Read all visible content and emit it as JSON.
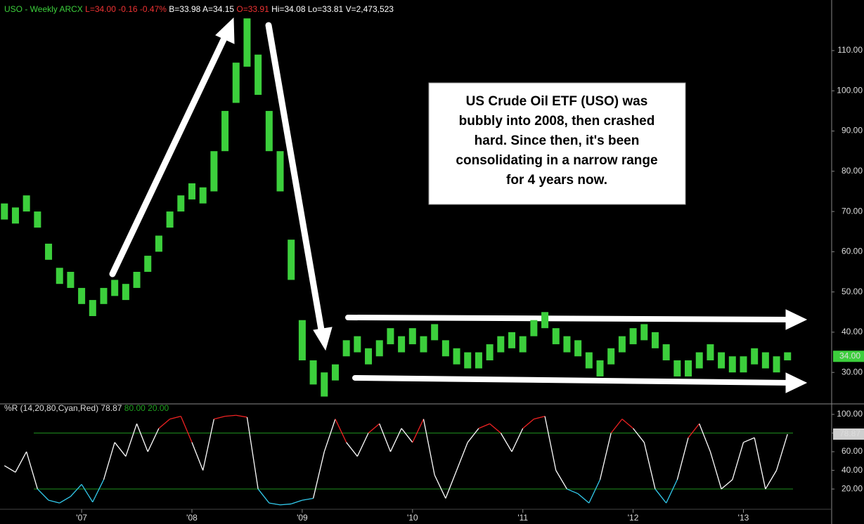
{
  "chart_data": [
    {
      "type": "range-bar",
      "header": {
        "symbol": "USO - Weekly",
        "exchange": "ARCX",
        "last": "L=34.00",
        "change": "-0.16",
        "change_pct": "-0.47%",
        "bid": "B=33.98",
        "ask": "A=34.15",
        "open": "O=33.91",
        "high": "Hi=34.08",
        "low": "Lo=33.81",
        "volume": "V=2,473,523"
      },
      "annotation": [
        "US Crude Oil ETF (USO) was",
        "bubbly into 2008, then crashed",
        "hard.  Since then, it's been",
        "consolidating in a narrow range",
        "for 4 years now."
      ],
      "x": [
        2006.3,
        2006.4,
        2006.5,
        2006.6,
        2006.7,
        2006.8,
        2006.9,
        2007.0,
        2007.1,
        2007.2,
        2007.3,
        2007.4,
        2007.5,
        2007.6,
        2007.7,
        2007.8,
        2007.9,
        2008.0,
        2008.1,
        2008.2,
        2008.3,
        2008.4,
        2008.5,
        2008.6,
        2008.7,
        2008.8,
        2008.9,
        2009.0,
        2009.1,
        2009.2,
        2009.3,
        2009.4,
        2009.5,
        2009.6,
        2009.7,
        2009.8,
        2009.9,
        2010.0,
        2010.1,
        2010.2,
        2010.3,
        2010.4,
        2010.5,
        2010.6,
        2010.7,
        2010.8,
        2010.9,
        2011.0,
        2011.1,
        2011.2,
        2011.3,
        2011.4,
        2011.5,
        2011.6,
        2011.7,
        2011.8,
        2011.9,
        2012.0,
        2012.1,
        2012.2,
        2012.3,
        2012.4,
        2012.5,
        2012.6,
        2012.7,
        2012.8,
        2012.9,
        2013.0,
        2013.1,
        2013.2,
        2013.3,
        2013.4
      ],
      "high": [
        72,
        71,
        74,
        70,
        62,
        56,
        55,
        51,
        48,
        51,
        53,
        52,
        55,
        59,
        64,
        70,
        74,
        77,
        76,
        85,
        95,
        107,
        118,
        109,
        95,
        85,
        63,
        43,
        33,
        30,
        32,
        38,
        39,
        36,
        38,
        41,
        39,
        41,
        39,
        42,
        38,
        36,
        35,
        35,
        37,
        39,
        40,
        39,
        43,
        45,
        41,
        39,
        38,
        35,
        33,
        36,
        39,
        41,
        42,
        40,
        37,
        33,
        33,
        35,
        37,
        35,
        34,
        34,
        36,
        35,
        34,
        35
      ],
      "low": [
        68,
        67,
        70,
        66,
        58,
        52,
        51,
        47,
        44,
        47,
        49,
        48,
        51,
        55,
        60,
        66,
        70,
        73,
        72,
        75,
        85,
        97,
        106,
        99,
        85,
        75,
        53,
        33,
        27,
        24,
        28,
        34,
        35,
        32,
        34,
        37,
        35,
        37,
        35,
        38,
        34,
        32,
        31,
        31,
        33,
        35,
        36,
        35,
        39,
        41,
        37,
        35,
        34,
        31,
        29,
        32,
        35,
        37,
        38,
        36,
        33,
        29,
        29,
        31,
        33,
        31,
        30,
        30,
        32,
        31,
        30,
        33
      ],
      "color": "#3ccf3c",
      "xlim": [
        2006.26,
        2013.8
      ],
      "xticks": [
        {
          "value": 2007,
          "label": "'07"
        },
        {
          "value": 2008,
          "label": "'08"
        },
        {
          "value": 2009,
          "label": "'09"
        },
        {
          "value": 2010,
          "label": "'10"
        },
        {
          "value": 2011,
          "label": "'11"
        },
        {
          "value": 2012,
          "label": "'12"
        },
        {
          "value": 2013,
          "label": "'13"
        }
      ],
      "ylim": [
        22.7,
        121.7
      ],
      "yticks": [
        {
          "value": 30,
          "label": "30.00"
        },
        {
          "value": 40,
          "label": "40.00"
        },
        {
          "value": 50,
          "label": "50.00"
        },
        {
          "value": 60,
          "label": "60.00"
        },
        {
          "value": 70,
          "label": "70.00"
        },
        {
          "value": 80,
          "label": "80.00"
        },
        {
          "value": 90,
          "label": "90.00"
        },
        {
          "value": 100,
          "label": "100.00"
        },
        {
          "value": 110,
          "label": "110.00"
        }
      ],
      "last_value": {
        "value": 34,
        "label": "34.00"
      }
    },
    {
      "type": "line",
      "title": "%R (14,20,80,Cyan,Red)",
      "x": [
        2006.3,
        2006.4,
        2006.5,
        2006.6,
        2006.7,
        2006.8,
        2006.9,
        2007.0,
        2007.1,
        2007.2,
        2007.3,
        2007.4,
        2007.5,
        2007.6,
        2007.7,
        2007.8,
        2007.9,
        2008.0,
        2008.1,
        2008.2,
        2008.3,
        2008.4,
        2008.5,
        2008.6,
        2008.7,
        2008.8,
        2008.9,
        2009.0,
        2009.1,
        2009.2,
        2009.3,
        2009.4,
        2009.5,
        2009.6,
        2009.7,
        2009.8,
        2009.9,
        2010.0,
        2010.1,
        2010.2,
        2010.3,
        2010.4,
        2010.5,
        2010.6,
        2010.7,
        2010.8,
        2010.9,
        2011.0,
        2011.1,
        2011.2,
        2011.3,
        2011.4,
        2011.5,
        2011.6,
        2011.7,
        2011.8,
        2011.9,
        2012.0,
        2012.1,
        2012.2,
        2012.3,
        2012.4,
        2012.5,
        2012.6,
        2012.7,
        2012.8,
        2012.9,
        2013.0,
        2013.1,
        2013.2,
        2013.3,
        2013.4
      ],
      "values": [
        45,
        38,
        60,
        20,
        8,
        5,
        12,
        25,
        6,
        30,
        70,
        55,
        90,
        60,
        85,
        95,
        98,
        70,
        40,
        95,
        98,
        99,
        97,
        20,
        5,
        3,
        4,
        8,
        10,
        60,
        95,
        70,
        55,
        80,
        90,
        60,
        85,
        70,
        95,
        35,
        10,
        40,
        70,
        85,
        90,
        80,
        60,
        85,
        95,
        98,
        40,
        20,
        15,
        5,
        30,
        80,
        95,
        85,
        70,
        20,
        5,
        30,
        75,
        90,
        60,
        20,
        30,
        70,
        75,
        20,
        40,
        78.87
      ],
      "colors": {
        "low": "#33ccee",
        "mid": "#ffffff",
        "high": "#ee2222",
        "level": "#1f8f1f"
      },
      "levels": [
        {
          "value": 80,
          "label": "80.00"
        },
        {
          "value": 20,
          "label": "20.00"
        }
      ],
      "ylim": [
        -13,
        109
      ],
      "yticks": [
        {
          "value": 20,
          "label": "20.00"
        },
        {
          "value": 40,
          "label": "40.00"
        },
        {
          "value": 60,
          "label": "60.00"
        },
        {
          "value": 80,
          "label": "80.00"
        },
        {
          "value": 100,
          "label": "100.00"
        }
      ],
      "last_value": {
        "value": 78.87,
        "label": "78.87"
      }
    }
  ]
}
